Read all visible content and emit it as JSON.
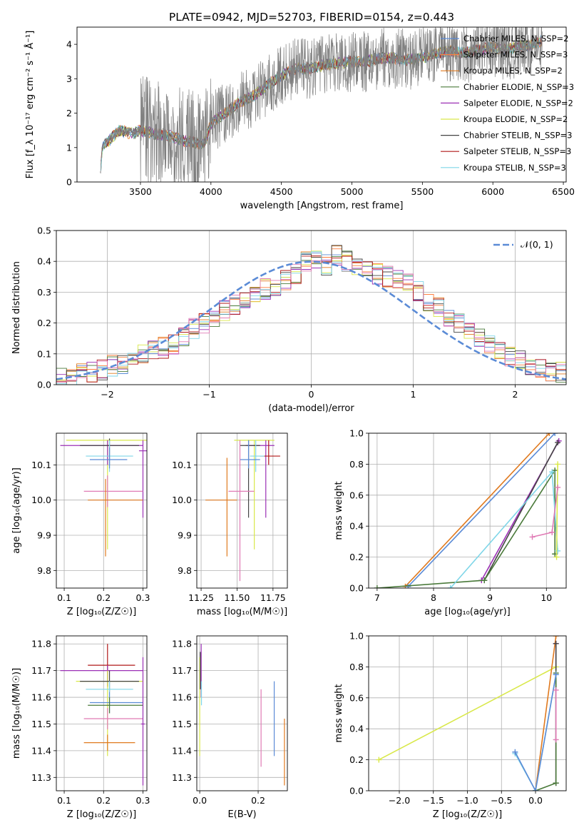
{
  "figure_title": "PLATE=0942, MJD=52703, FIBERID=0154, z=0.443",
  "colors": {
    "chabrier_miles": "#5b8bd6",
    "salpeter_miles": "#ff7f3f",
    "kroupa_miles": "#e07a1f",
    "chabrier_elodie": "#4a7a3a",
    "salpeter_elodie": "#9b30b5",
    "kroupa_elodie": "#d9e84a",
    "chabrier_stelib": "#444444",
    "salpeter_stelib": "#b01818",
    "kroupa_stelib": "#7fd6e8",
    "data": "#808080",
    "pink": "#e07bb5",
    "normal_curve": "#5b8bd6"
  },
  "chart_data": [
    {
      "id": "spectrum",
      "type": "line",
      "title": "PLATE=0942, MJD=52703, FIBERID=0154, z=0.443",
      "xlabel": "wavelength [Angstrom, rest frame]",
      "ylabel": "Flux [f_λ 10⁻¹⁷ erg cm⁻² s⁻¹ Å⁻¹]",
      "xlim": [
        3050,
        6520
      ],
      "ylim": [
        0,
        4.5
      ],
      "xticks": [
        3500,
        4000,
        4500,
        5000,
        5500,
        6000,
        6500
      ],
      "yticks": [
        0,
        1,
        2,
        3,
        4
      ],
      "legend_placement": "top-right",
      "legend": [
        "Chabrier MILES, N_SSP=2",
        "Salpeter MILES, N_SSP=3",
        "Kroupa MILES, N_SSP=2",
        "Chabrier ELODIE, N_SSP=3",
        "Salpeter ELODIE, N_SSP=2",
        "Kroupa ELODIE, N_SSP=2",
        "Chabrier STELIB, N_SSP=3",
        "Salpeter STELIB, N_SSP=3",
        "Kroupa STELIB, N_SSP=3"
      ],
      "continuum_points": [
        [
          3210,
          0
        ],
        [
          3230,
          1.0
        ],
        [
          3300,
          1.3
        ],
        [
          3350,
          1.5
        ],
        [
          3450,
          1.4
        ],
        [
          3500,
          1.5
        ],
        [
          3600,
          1.4
        ],
        [
          3700,
          1.35
        ],
        [
          3800,
          1.2
        ],
        [
          3950,
          1.1
        ],
        [
          4000,
          1.7
        ],
        [
          4100,
          2.0
        ],
        [
          4200,
          2.3
        ],
        [
          4300,
          2.5
        ],
        [
          4400,
          2.8
        ],
        [
          4500,
          3.1
        ],
        [
          4600,
          3.3
        ],
        [
          4700,
          3.3
        ],
        [
          4800,
          3.4
        ],
        [
          4900,
          3.45
        ],
        [
          5000,
          3.5
        ],
        [
          5100,
          3.5
        ],
        [
          5200,
          3.6
        ],
        [
          5300,
          3.6
        ],
        [
          5400,
          3.55
        ],
        [
          5500,
          3.6
        ],
        [
          5600,
          3.75
        ],
        [
          5700,
          3.8
        ],
        [
          5800,
          3.75
        ],
        [
          5900,
          3.85
        ],
        [
          6000,
          3.9
        ],
        [
          6100,
          3.85
        ],
        [
          6200,
          3.95
        ],
        [
          6300,
          4.0
        ],
        [
          6350,
          4.1
        ]
      ]
    },
    {
      "id": "residuals",
      "type": "bar",
      "xlabel": "(data-model)/error",
      "ylabel": "Normed distribution",
      "xlim": [
        -2.5,
        2.5
      ],
      "ylim": [
        0,
        0.5
      ],
      "xticks": [
        -2,
        -1,
        0,
        1,
        2
      ],
      "yticks": [
        0.0,
        0.1,
        0.2,
        0.3,
        0.4,
        0.5
      ],
      "bin_width": 0.1,
      "legend": [
        "𝒩(0, 1)"
      ],
      "legend_placement": "top-right",
      "histogram": [
        0.02,
        0.03,
        0.04,
        0.04,
        0.05,
        0.06,
        0.07,
        0.08,
        0.1,
        0.11,
        0.12,
        0.13,
        0.15,
        0.18,
        0.2,
        0.22,
        0.24,
        0.26,
        0.28,
        0.3,
        0.31,
        0.32,
        0.34,
        0.36,
        0.4,
        0.41,
        0.39,
        0.42,
        0.4,
        0.38,
        0.37,
        0.36,
        0.35,
        0.34,
        0.33,
        0.3,
        0.27,
        0.25,
        0.22,
        0.2,
        0.18,
        0.15,
        0.13,
        0.11,
        0.09,
        0.08,
        0.06,
        0.05,
        0.04,
        0.04
      ]
    },
    {
      "id": "age_vs_Z",
      "type": "scatter",
      "xlabel": "Z [log₁₀(Z/Z☉)]",
      "ylabel": "age  [log₁₀(age/yr)]",
      "xlim": [
        0.08,
        0.31
      ],
      "ylim": [
        9.75,
        10.19
      ],
      "xticks": [
        0.1,
        0.2,
        0.3
      ],
      "yticks": [
        9.8,
        9.9,
        10.0,
        10.1
      ],
      "points": [
        {
          "x": 0.21,
          "y": 10.17,
          "xerr": [
            0.105,
            0.31
          ],
          "yerr": [
            9.86,
            10.17
          ],
          "c": "kroupa_elodie"
        },
        {
          "x": 0.21,
          "y": 10.155,
          "xerr": [
            0.09,
            0.3
          ],
          "yerr": [
            10.1,
            10.17
          ],
          "c": "salpeter_elodie"
        },
        {
          "x": 0.215,
          "y": 10.155,
          "xerr": [
            0.14,
            0.29
          ],
          "yerr": [
            10.1,
            10.175
          ],
          "c": "chabrier_stelib"
        },
        {
          "x": 0.215,
          "y": 10.125,
          "xerr": [
            0.155,
            0.275
          ],
          "yerr": [
            10.08,
            10.17
          ],
          "c": "kroupa_stelib"
        },
        {
          "x": 0.215,
          "y": 10.115,
          "xerr": [
            0.165,
            0.26
          ],
          "yerr": [
            10.09,
            10.15
          ],
          "c": "chabrier_miles"
        },
        {
          "x": 0.3,
          "y": 10.14,
          "xerr": [
            0.29,
            0.31
          ],
          "yerr": [
            9.95,
            10.17
          ],
          "c": "salpeter_elodie"
        },
        {
          "x": 0.21,
          "y": 10.025,
          "xerr": [
            0.15,
            0.3
          ],
          "yerr": [
            9.98,
            10.07
          ],
          "c": "pink"
        },
        {
          "x": 0.205,
          "y": 10.0,
          "xerr": [
            0.16,
            0.3
          ],
          "yerr": [
            9.84,
            10.06
          ],
          "c": "kroupa_miles"
        }
      ]
    },
    {
      "id": "age_vs_mass",
      "type": "scatter",
      "xlabel": "mass [log₁₀(M/M☉)]",
      "ylabel": "",
      "xlim": [
        11.22,
        11.85
      ],
      "ylim": [
        9.75,
        10.19
      ],
      "xticks": [
        11.25,
        11.5,
        11.75
      ],
      "yticks": [
        9.8,
        9.9,
        10.0,
        10.1
      ],
      "points": [
        {
          "x": 11.62,
          "y": 10.17,
          "xerr": [
            11.48,
            11.76
          ],
          "yerr": [
            9.86,
            10.17
          ],
          "c": "kroupa_elodie"
        },
        {
          "x": 11.7,
          "y": 10.155,
          "xerr": [
            11.56,
            11.76
          ],
          "yerr": [
            9.95,
            10.17
          ],
          "c": "salpeter_elodie"
        },
        {
          "x": 11.72,
          "y": 10.125,
          "xerr": [
            11.66,
            11.8
          ],
          "yerr": [
            10.1,
            10.17
          ],
          "c": "salpeter_stelib"
        },
        {
          "x": 11.58,
          "y": 10.155,
          "xerr": [
            11.52,
            11.66
          ],
          "yerr": [
            9.95,
            10.17
          ],
          "c": "chabrier_stelib"
        },
        {
          "x": 11.63,
          "y": 10.125,
          "xerr": [
            11.59,
            11.69
          ],
          "yerr": [
            10.08,
            10.17
          ],
          "c": "kroupa_stelib"
        },
        {
          "x": 11.58,
          "y": 10.115,
          "xerr": [
            11.52,
            11.66
          ],
          "yerr": [
            10.09,
            10.17
          ],
          "c": "chabrier_miles"
        },
        {
          "x": 11.52,
          "y": 10.025,
          "xerr": [
            11.44,
            11.62
          ],
          "yerr": [
            9.77,
            10.17
          ],
          "c": "pink"
        },
        {
          "x": 11.43,
          "y": 10.0,
          "xerr": [
            11.28,
            11.5
          ],
          "yerr": [
            9.84,
            10.12
          ],
          "c": "kroupa_miles"
        }
      ]
    },
    {
      "id": "massweight_vs_age",
      "type": "line",
      "xlabel": "age  [log₁₀(age/yr)]",
      "ylabel": "mass weight",
      "xlim": [
        6.85,
        10.35
      ],
      "ylim": [
        0,
        1
      ],
      "xticks": [
        7,
        8,
        9,
        10
      ],
      "yticks": [
        0.0,
        0.2,
        0.4,
        0.6,
        0.8,
        1.0
      ],
      "series": [
        {
          "c": "kroupa_miles",
          "pts": [
            [
              7.5,
              0.01
            ],
            [
              10.05,
              1.0
            ]
          ]
        },
        {
          "c": "chabrier_miles",
          "pts": [
            [
              7.55,
              0.01
            ],
            [
              10.15,
              1.0
            ]
          ]
        },
        {
          "c": "salpeter_elodie",
          "pts": [
            [
              8.85,
              0.05
            ],
            [
              10.22,
              0.95
            ]
          ]
        },
        {
          "c": "chabrier_stelib",
          "pts": [
            [
              8.9,
              0.05
            ],
            [
              10.2,
              0.94
            ]
          ]
        },
        {
          "c": "chabrier_elodie",
          "pts": [
            [
              7.0,
              0.0
            ],
            [
              8.9,
              0.05
            ],
            [
              10.15,
              0.76
            ],
            [
              10.15,
              0.22
            ]
          ]
        },
        {
          "c": "kroupa_stelib",
          "pts": [
            [
              8.3,
              0.0
            ],
            [
              10.1,
              0.75
            ],
            [
              10.2,
              0.24
            ]
          ]
        },
        {
          "c": "kroupa_elodie",
          "pts": [
            [
              10.2,
              0.8
            ],
            [
              10.18,
              0.2
            ]
          ]
        },
        {
          "c": "pink",
          "pts": [
            [
              9.75,
              0.33
            ],
            [
              10.1,
              0.36
            ],
            [
              10.2,
              0.65
            ]
          ]
        }
      ]
    },
    {
      "id": "mass_vs_Z",
      "type": "scatter",
      "xlabel": "Z [log₁₀(Z/Z☉)]",
      "ylabel": "mass [log₁₀(M/M☉)]",
      "xlim": [
        0.08,
        0.31
      ],
      "ylim": [
        11.25,
        11.83
      ],
      "xticks": [
        0.1,
        0.2,
        0.3
      ],
      "yticks": [
        11.3,
        11.4,
        11.5,
        11.6,
        11.7,
        11.8
      ],
      "points": [
        {
          "x": 0.21,
          "y": 11.72,
          "xerr": [
            0.16,
            0.28
          ],
          "yerr": [
            11.64,
            11.8
          ],
          "c": "salpeter_stelib"
        },
        {
          "x": 0.21,
          "y": 11.7,
          "xerr": [
            0.09,
            0.3
          ],
          "yerr": [
            11.65,
            11.72
          ],
          "c": "salpeter_elodie"
        },
        {
          "x": 0.21,
          "y": 11.66,
          "xerr": [
            0.13,
            0.3
          ],
          "yerr": [
            11.38,
            11.7
          ],
          "c": "kroupa_elodie"
        },
        {
          "x": 0.215,
          "y": 11.66,
          "xerr": [
            0.14,
            0.29
          ],
          "yerr": [
            11.62,
            11.7
          ],
          "c": "chabrier_stelib"
        },
        {
          "x": 0.215,
          "y": 11.63,
          "xerr": [
            0.155,
            0.275
          ],
          "yerr": [
            11.6,
            11.66
          ],
          "c": "kroupa_stelib"
        },
        {
          "x": 0.215,
          "y": 11.58,
          "xerr": [
            0.165,
            0.3
          ],
          "yerr": [
            11.54,
            11.62
          ],
          "c": "chabrier_miles"
        },
        {
          "x": 0.215,
          "y": 11.57,
          "xerr": [
            0.16,
            0.3
          ],
          "yerr": [
            11.54,
            11.6
          ],
          "c": "chabrier_elodie"
        },
        {
          "x": 0.21,
          "y": 11.52,
          "xerr": [
            0.15,
            0.3
          ],
          "yerr": [
            11.48,
            11.56
          ],
          "c": "pink"
        },
        {
          "x": 0.21,
          "y": 11.43,
          "xerr": [
            0.15,
            0.28
          ],
          "yerr": [
            11.4,
            11.46
          ],
          "c": "kroupa_miles"
        },
        {
          "x": 0.3,
          "y": 11.5,
          "xerr": [
            0.295,
            0.305
          ],
          "yerr": [
            11.27,
            11.75
          ],
          "c": "salpeter_elodie"
        }
      ]
    },
    {
      "id": "mass_vs_ebv",
      "type": "scatter",
      "xlabel": "E(B-V)",
      "ylabel": "",
      "xlim": [
        -0.01,
        0.3
      ],
      "ylim": [
        11.25,
        11.83
      ],
      "xticks": [
        0.0,
        0.2
      ],
      "yticks": [
        11.3,
        11.4,
        11.5,
        11.6,
        11.7,
        11.8
      ],
      "points": [
        {
          "x": 0.005,
          "y": 11.7,
          "yerr": [
            11.6,
            11.8
          ],
          "c": "salpeter_elodie"
        },
        {
          "x": 0.0,
          "y": 11.6,
          "yerr": [
            11.38,
            11.75
          ],
          "c": "kroupa_elodie"
        },
        {
          "x": 0.002,
          "y": 11.7,
          "yerr": [
            11.63,
            11.77
          ],
          "c": "chabrier_stelib"
        },
        {
          "x": 0.006,
          "y": 11.6,
          "yerr": [
            11.57,
            11.66
          ],
          "c": "kroupa_stelib"
        },
        {
          "x": 0.21,
          "y": 11.48,
          "yerr": [
            11.34,
            11.63
          ],
          "c": "pink"
        },
        {
          "x": 0.255,
          "y": 11.52,
          "yerr": [
            11.38,
            11.66
          ],
          "c": "chabrier_miles"
        },
        {
          "x": 0.29,
          "y": 11.4,
          "yerr": [
            11.27,
            11.52
          ],
          "c": "kroupa_miles"
        }
      ]
    },
    {
      "id": "massweight_vs_Z",
      "type": "line",
      "xlabel": "Z [log₁₀(Z/Z☉)]",
      "ylabel": "mass weight",
      "xlim": [
        -2.45,
        0.45
      ],
      "ylim": [
        0,
        1
      ],
      "xticks": [
        -2.0,
        -1.5,
        -1.0,
        -0.5,
        0.0
      ],
      "yticks": [
        0.0,
        0.2,
        0.4,
        0.6,
        0.8,
        1.0
      ],
      "series": [
        {
          "c": "kroupa_elodie",
          "pts": [
            [
              -2.3,
              0.2
            ],
            [
              0.3,
              0.8
            ]
          ]
        },
        {
          "c": "kroupa_miles",
          "pts": [
            [
              0.0,
              0.0
            ],
            [
              0.3,
              1.0
            ]
          ]
        },
        {
          "c": "salpeter_elodie",
          "pts": [
            [
              0.3,
              0.05
            ],
            [
              0.3,
              0.95
            ]
          ]
        },
        {
          "c": "chabrier_stelib",
          "pts": [
            [
              0.3,
              0.05
            ],
            [
              0.3,
              0.95
            ]
          ]
        },
        {
          "c": "chabrier_elodie",
          "pts": [
            [
              0.0,
              0.0
            ],
            [
              0.3,
              0.05
            ],
            [
              0.3,
              0.76
            ]
          ]
        },
        {
          "c": "kroupa_stelib",
          "pts": [
            [
              -0.3,
              0.24
            ],
            [
              0.0,
              0.0
            ],
            [
              0.3,
              0.75
            ]
          ]
        },
        {
          "c": "chabrier_miles",
          "pts": [
            [
              -0.3,
              0.25
            ],
            [
              0.0,
              0.0
            ],
            [
              0.3,
              0.75
            ]
          ]
        },
        {
          "c": "pink",
          "pts": [
            [
              0.3,
              0.33
            ],
            [
              0.3,
              0.65
            ]
          ]
        }
      ]
    }
  ]
}
